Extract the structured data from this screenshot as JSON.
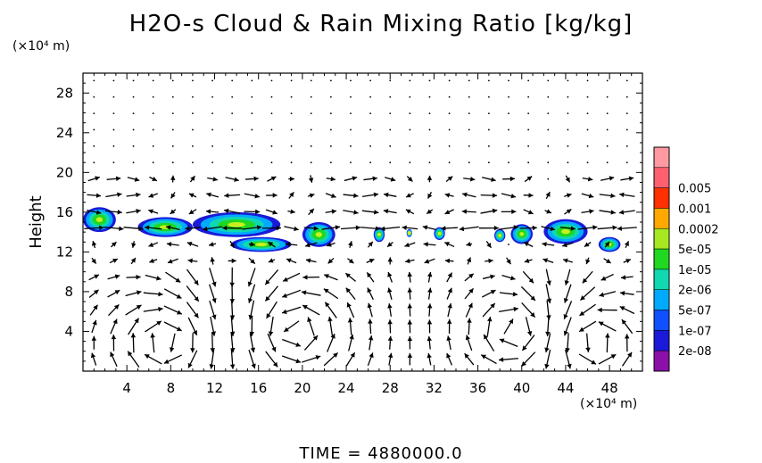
{
  "chart_data": {
    "type": "heatmap",
    "title": "H2O-s Cloud & Rain Mixing Ratio [kg/kg]",
    "ylabel": "Height",
    "y_unit": "(×10⁴ m)",
    "x_unit": "(×10⁴ m)",
    "xlim": [
      0,
      51
    ],
    "ylim": [
      0,
      30
    ],
    "x_ticks": [
      4,
      8,
      12,
      16,
      20,
      24,
      28,
      32,
      36,
      40,
      44,
      48
    ],
    "y_ticks": [
      4,
      8,
      12,
      16,
      20,
      24,
      28
    ],
    "legend_levels": [
      "2e-08",
      "1e-07",
      "5e-07",
      "2e-06",
      "1e-05",
      "5e-05",
      "0.0002",
      "0.001",
      "0.005"
    ],
    "legend_colors": [
      "#8a10a8",
      "#1a1ad8",
      "#1050ff",
      "#00aaff",
      "#10d8b0",
      "#20d820",
      "#a8e820",
      "#ffa800",
      "#ff3000",
      "#ff6070",
      "#ff9aa0"
    ],
    "cloud_regions": [
      {
        "x": [
          0,
          3
        ],
        "y": [
          14,
          16.5
        ]
      },
      {
        "x": [
          5,
          10
        ],
        "y": [
          13.5,
          15.5
        ]
      },
      {
        "x": [
          10,
          18
        ],
        "y": [
          13.5,
          16
        ]
      },
      {
        "x": [
          13.5,
          19
        ],
        "y": [
          12,
          13.5
        ]
      },
      {
        "x": [
          20,
          23
        ],
        "y": [
          12.5,
          15
        ]
      },
      {
        "x": [
          26.5,
          27.5
        ],
        "y": [
          13,
          14.5
        ]
      },
      {
        "x": [
          29.5,
          30
        ],
        "y": [
          13.5,
          14.3
        ]
      },
      {
        "x": [
          32,
          33
        ],
        "y": [
          13.2,
          14.5
        ]
      },
      {
        "x": [
          37.5,
          38.5
        ],
        "y": [
          13,
          14.3
        ]
      },
      {
        "x": [
          39,
          41
        ],
        "y": [
          12.8,
          14.8
        ]
      },
      {
        "x": [
          42,
          46
        ],
        "y": [
          12.8,
          15.3
        ]
      },
      {
        "x": [
          47,
          49
        ],
        "y": [
          12,
          13.5
        ]
      }
    ],
    "wind_vectors": "shown",
    "time_label": "TIME",
    "time_value": "4880000.0"
  },
  "labels": {
    "title": "H2O-s Cloud & Rain Mixing Ratio [kg/kg]",
    "ylabel": "Height",
    "yunit": "(×10⁴ m)",
    "xunit": "(×10⁴ m)",
    "time": "TIME  =  4880000.0"
  }
}
